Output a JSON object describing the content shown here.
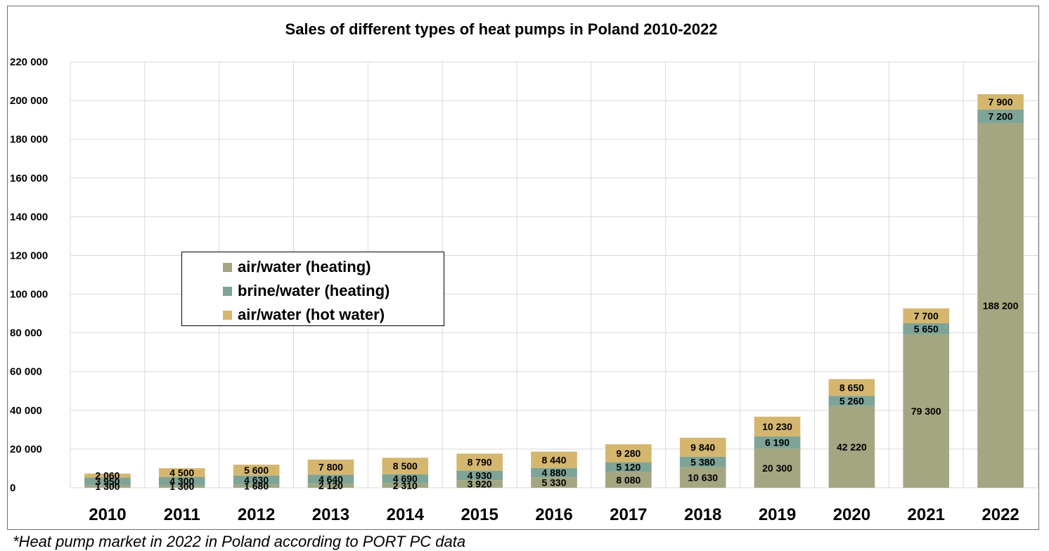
{
  "footnote": "*Heat pump market in 2022 in Poland according to PORT PC data",
  "chart_data": {
    "type": "bar",
    "stacked": true,
    "title": "Sales of different types of heat pumps in Poland 2010-2022",
    "xlabel": "",
    "ylabel": "",
    "ylim": [
      0,
      220000
    ],
    "ytick_values": [
      0,
      20000,
      40000,
      60000,
      80000,
      100000,
      120000,
      140000,
      160000,
      180000,
      200000,
      220000
    ],
    "ytick_labels": [
      "0",
      "20 000",
      "40 000",
      "60 000",
      "80 000",
      "100 000",
      "120 000",
      "140 000",
      "160 000",
      "180 000",
      "200 000",
      "220 000"
    ],
    "grid": true,
    "legend_position": "center-left",
    "categories": [
      "2010",
      "2011",
      "2012",
      "2013",
      "2014",
      "2015",
      "2016",
      "2017",
      "2018",
      "2019",
      "2020",
      "2021",
      "2022"
    ],
    "series": [
      {
        "name": "air/water (heating)",
        "color": "#a3a681",
        "values": [
          1300,
          1300,
          1680,
          2120,
          2310,
          3920,
          5330,
          8080,
          10630,
          20300,
          42220,
          79300,
          188200
        ],
        "labels": [
          "1 300",
          "1 300",
          "1 680",
          "2 120",
          "2 310",
          "3 920",
          "5 330",
          "8 080",
          "10 630",
          "20 300",
          "42 220",
          "79 300",
          "188 200"
        ]
      },
      {
        "name": "brine/water (heating)",
        "color": "#7ea497",
        "values": [
          3950,
          4300,
          4630,
          4640,
          4690,
          4930,
          4880,
          5120,
          5380,
          6190,
          5260,
          5650,
          7200
        ],
        "labels": [
          "3 950",
          "4 300",
          "4 630",
          "4 640",
          "4 690",
          "4 930",
          "4 880",
          "5 120",
          "5 380",
          "6 190",
          "5 260",
          "5 650",
          "7 200"
        ]
      },
      {
        "name": "air/water (hot water)",
        "color": "#d5b66f",
        "values": [
          2060,
          4500,
          5600,
          7800,
          8500,
          8790,
          8440,
          9280,
          9840,
          10230,
          8650,
          7700,
          7900
        ],
        "labels": [
          "2 060",
          "4 500",
          "5 600",
          "7 800",
          "8 500",
          "8 790",
          "8 440",
          "9 280",
          "9 840",
          "10 230",
          "8 650",
          "7 700",
          "7 900"
        ]
      }
    ]
  }
}
